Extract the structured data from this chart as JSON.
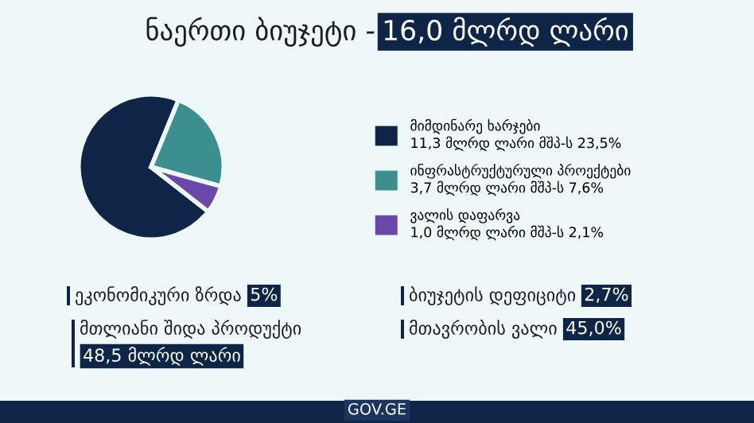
{
  "chart_data": {
    "type": "pie",
    "title": "ნაერთი ბიუჯეტი -",
    "subtitle": "16,0 მლრდ ლარი",
    "categories": [
      "მიმდინარე ხარჯები",
      "ინფრასტრუქტურული პროექტები",
      "ვალის დაფარვა"
    ],
    "values": [
      11.3,
      3.7,
      1.0
    ],
    "colors": [
      "#0f2547",
      "#3b8f8e",
      "#6a47a8"
    ],
    "value_labels": [
      "11,3 მლრდ ლარი მშპ-ს 23,5%",
      "3,7 მლრდ ლარი მშპ-ს 7,6%",
      "1,0 მლრდ ლარი მშპ-ს 2,1%"
    ],
    "legend": "right",
    "annotations": [
      "ეკონომიკური ზრდა",
      "5%",
      "ბიუჯეტის დეფიციტი",
      "2,7%",
      "მთლიანი შიდა პროდუქტი",
      "48,5 მლრდ ლარი",
      "მთავრობის ვალი",
      "45,0%",
      "GOV.GE"
    ]
  }
}
